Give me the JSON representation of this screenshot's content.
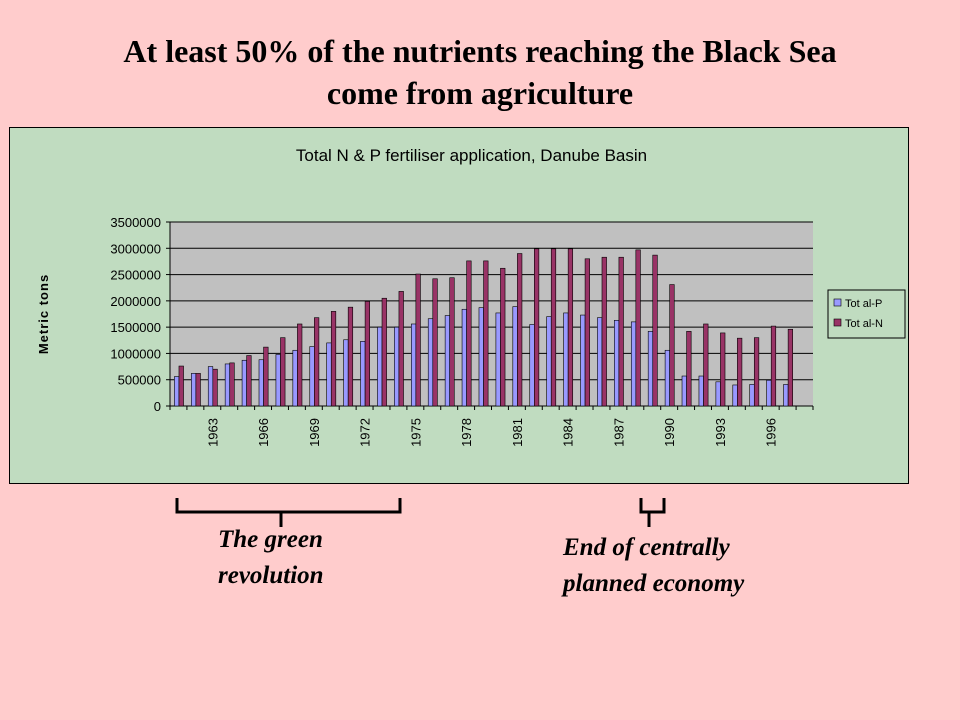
{
  "slide": {
    "title_line1": "At least 50% of the nutrients reaching the Black Sea",
    "title_line2": "come from agriculture"
  },
  "annotations": {
    "green_revolution_line1": "The green",
    "green_revolution_line2": "revolution",
    "central_economy_line1": "End of centrally",
    "central_economy_line2": "planned economy"
  },
  "chart_data": {
    "type": "bar",
    "title": "Total N & P fertiliser application, Danube Basin",
    "xlabel": "",
    "ylabel": "Metric tons",
    "ylim": [
      0,
      3500000
    ],
    "yticks": [
      0,
      500000,
      1000000,
      1500000,
      2000000,
      2500000,
      3000000,
      3500000
    ],
    "grid": true,
    "legend_position": "right",
    "categories": [
      1961,
      1962,
      1963,
      1964,
      1965,
      1966,
      1967,
      1968,
      1969,
      1970,
      1971,
      1972,
      1973,
      1974,
      1975,
      1976,
      1977,
      1978,
      1979,
      1980,
      1981,
      1982,
      1983,
      1984,
      1985,
      1986,
      1987,
      1988,
      1989,
      1990,
      1991,
      1992,
      1993,
      1994,
      1995,
      1996,
      1997,
      1998
    ],
    "xtick_labels": [
      "1963",
      "1966",
      "1969",
      "1972",
      "1975",
      "1978",
      "1981",
      "1984",
      "1987",
      "1990",
      "1993",
      "1996"
    ],
    "series": [
      {
        "name": "Tot al-P",
        "color": "#9999FF",
        "values": [
          560000,
          620000,
          750000,
          800000,
          870000,
          880000,
          980000,
          1060000,
          1130000,
          1200000,
          1260000,
          1230000,
          1500000,
          1500000,
          1560000,
          1660000,
          1720000,
          1840000,
          1870000,
          1770000,
          1890000,
          1550000,
          1700000,
          1770000,
          1730000,
          1680000,
          1630000,
          1600000,
          1420000,
          1060000,
          570000,
          570000,
          460000,
          400000,
          410000,
          490000,
          410000,
          null
        ]
      },
      {
        "name": "Tot al-N",
        "color": "#993366",
        "values": [
          760000,
          620000,
          700000,
          820000,
          960000,
          1120000,
          1300000,
          1560000,
          1680000,
          1800000,
          1880000,
          1990000,
          2050000,
          2180000,
          2510000,
          2420000,
          2440000,
          2760000,
          2760000,
          2620000,
          2900000,
          2990000,
          2990000,
          2990000,
          2800000,
          2830000,
          2830000,
          2970000,
          2870000,
          2310000,
          1420000,
          1560000,
          1390000,
          1290000,
          1300000,
          1520000,
          1460000,
          null
        ]
      }
    ]
  }
}
